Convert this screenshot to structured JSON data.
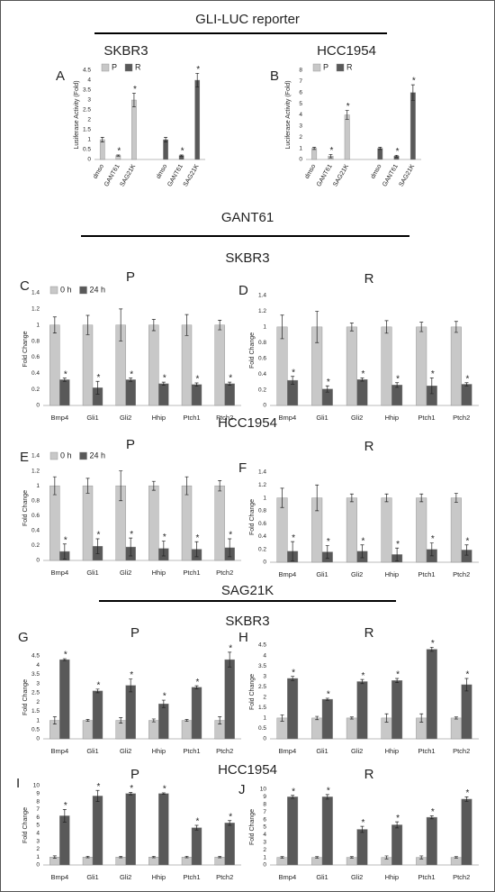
{
  "headings": [
    "GLI-LUC reporter",
    "SKBR3",
    "HCC1954",
    "GANT61",
    "SKBR3",
    "HCC1954",
    "SAG21K",
    "SKBR3",
    "HCC1954"
  ],
  "chart_data": [
    {
      "type": "bar",
      "panel": "A",
      "y_label": "Lusiferase Activity (Fold)",
      "ylim": [
        0,
        4.5
      ],
      "yticks": [
        0,
        0.5,
        1,
        1.5,
        2,
        2.5,
        3,
        3.5,
        4,
        4.5
      ],
      "categories": [
        "dmso",
        "GANT61",
        "SAG21K",
        "dmso",
        "GANT61",
        "SAG21K"
      ],
      "legend": true,
      "series": [
        {
          "name": "P",
          "color": "#c8c8c8",
          "values": [
            1,
            0.2,
            3,
            null,
            null,
            null
          ],
          "errors": [
            0.12,
            0.03,
            0.35,
            null,
            null,
            null
          ],
          "marks": [
            null,
            "*",
            "*",
            null,
            null,
            null
          ]
        },
        {
          "name": "R",
          "color": "#595959",
          "values": [
            null,
            null,
            null,
            1,
            0.2,
            4
          ],
          "errors": [
            null,
            null,
            null,
            0.12,
            0.03,
            0.35
          ],
          "marks": [
            null,
            null,
            null,
            null,
            "*",
            "*"
          ]
        }
      ]
    },
    {
      "type": "bar",
      "panel": "B",
      "y_label": "Luciferase Activity (Fold)",
      "ylim": [
        0,
        8
      ],
      "yticks": [
        0,
        1,
        2,
        3,
        4,
        5,
        6,
        7,
        8
      ],
      "categories": [
        "dmso",
        "GANT61",
        "SAG21K",
        "dmso",
        "GANT61",
        "SAG21K"
      ],
      "legend": true,
      "series": [
        {
          "name": "P",
          "color": "#c8c8c8",
          "values": [
            1,
            0.3,
            4,
            null,
            null,
            null
          ],
          "errors": [
            0.1,
            0.15,
            0.4,
            null,
            null,
            null
          ],
          "marks": [
            null,
            "*",
            "*",
            null,
            null,
            null
          ]
        },
        {
          "name": "R",
          "color": "#595959",
          "values": [
            null,
            null,
            null,
            1,
            0.3,
            6
          ],
          "errors": [
            null,
            null,
            null,
            0.1,
            0.08,
            0.7
          ],
          "marks": [
            null,
            null,
            null,
            null,
            "*",
            "*"
          ]
        }
      ]
    },
    {
      "type": "bar",
      "panel": "C",
      "title": "P",
      "y_label": "Fold Change",
      "ylim": [
        0,
        1.4
      ],
      "yticks": [
        0,
        0.2,
        0.4,
        0.6,
        0.8,
        1,
        1.2,
        1.4
      ],
      "categories": [
        "Bmp4",
        "Gli1",
        "Gli2",
        "Hhip",
        "Ptch1",
        "Ptch2"
      ],
      "legend": true,
      "series": [
        {
          "name": "0 h",
          "color": "#c8c8c8",
          "values": [
            1,
            1,
            1,
            1,
            1,
            1
          ],
          "errors": [
            0.1,
            0.12,
            0.2,
            0.07,
            0.13,
            0.06
          ]
        },
        {
          "name": "24 h",
          "color": "#595959",
          "values": [
            0.32,
            0.22,
            0.32,
            0.27,
            0.26,
            0.27
          ],
          "errors": [
            0.02,
            0.08,
            0.02,
            0.02,
            0.02,
            0.02
          ],
          "marks": [
            "*",
            "*",
            "*",
            "*",
            "*",
            "*"
          ]
        }
      ]
    },
    {
      "type": "bar",
      "panel": "D",
      "title": "R",
      "y_label": "Fold Change",
      "ylim": [
        0,
        1.4
      ],
      "yticks": [
        0,
        0.2,
        0.4,
        0.6,
        0.8,
        1,
        1.2,
        1.4
      ],
      "categories": [
        "Bmp4",
        "Gli1",
        "Gli2",
        "Hhip",
        "Ptch1",
        "Ptch2"
      ],
      "series": [
        {
          "color": "#c8c8c8",
          "values": [
            1,
            1,
            1,
            1,
            1,
            1
          ],
          "errors": [
            0.15,
            0.2,
            0.05,
            0.08,
            0.06,
            0.07
          ]
        },
        {
          "color": "#595959",
          "values": [
            0.32,
            0.21,
            0.33,
            0.26,
            0.25,
            0.27
          ],
          "errors": [
            0.05,
            0.04,
            0.02,
            0.03,
            0.1,
            0.02
          ],
          "marks": [
            "*",
            "*",
            "*",
            "*",
            "*",
            "*"
          ]
        }
      ]
    },
    {
      "type": "bar",
      "panel": "E",
      "title": "P",
      "y_label": "Fold Change",
      "ylim": [
        0,
        1.4
      ],
      "yticks": [
        0,
        0.2,
        0.4,
        0.6,
        0.8,
        1,
        1.2,
        1.4
      ],
      "categories": [
        "Bmp4",
        "Gli1",
        "Gli2",
        "Hhip",
        "Ptch1",
        "Ptch2"
      ],
      "legend": true,
      "series": [
        {
          "name": "0 h",
          "color": "#c8c8c8",
          "values": [
            1,
            1,
            1,
            1,
            1,
            1
          ],
          "errors": [
            0.12,
            0.1,
            0.2,
            0.06,
            0.12,
            0.07
          ]
        },
        {
          "name": "24 h",
          "color": "#595959",
          "values": [
            0.12,
            0.19,
            0.18,
            0.16,
            0.15,
            0.17
          ],
          "errors": [
            0.1,
            0.1,
            0.12,
            0.1,
            0.1,
            0.12
          ],
          "marks": [
            "*",
            "*",
            "*",
            "*",
            "*",
            "*"
          ]
        }
      ]
    },
    {
      "type": "bar",
      "panel": "F",
      "title": "R",
      "y_label": "Fold Change",
      "ylim": [
        0,
        1.4
      ],
      "yticks": [
        0,
        0.2,
        0.4,
        0.6,
        0.8,
        1,
        1.2,
        1.4
      ],
      "categories": [
        "Bmp4",
        "Gli1",
        "Gli2",
        "Hhip",
        "Ptch1",
        "Ptch2"
      ],
      "series": [
        {
          "color": "#c8c8c8",
          "values": [
            1,
            1,
            1,
            1,
            1,
            1
          ],
          "errors": [
            0.15,
            0.2,
            0.06,
            0.06,
            0.06,
            0.07
          ]
        },
        {
          "color": "#595959",
          "values": [
            0.17,
            0.16,
            0.17,
            0.12,
            0.2,
            0.19
          ],
          "errors": [
            0.15,
            0.1,
            0.1,
            0.1,
            0.1,
            0.08
          ],
          "marks": [
            "*",
            "*",
            "*",
            "*",
            "*",
            "*"
          ]
        }
      ]
    },
    {
      "type": "bar",
      "panel": "G",
      "title": "P",
      "y_label": "Fold Change",
      "ylim": [
        0,
        4.5
      ],
      "yticks": [
        0,
        0.5,
        1,
        1.5,
        2,
        2.5,
        3,
        3.5,
        4,
        4.5
      ],
      "categories": [
        "Bmp4",
        "Gli1",
        "Gli2",
        "Hhip",
        "Ptch1",
        "Ptch2"
      ],
      "series": [
        {
          "color": "#c8c8c8",
          "values": [
            1,
            1,
            1,
            1,
            1,
            1
          ],
          "errors": [
            0.2,
            0.05,
            0.15,
            0.08,
            0.05,
            0.2
          ]
        },
        {
          "color": "#595959",
          "values": [
            4.3,
            2.6,
            2.9,
            1.9,
            2.8,
            4.3
          ],
          "errors": [
            0.05,
            0.1,
            0.35,
            0.2,
            0.08,
            0.4
          ],
          "marks": [
            "*",
            "*",
            "*",
            "*",
            "*",
            "*"
          ]
        }
      ]
    },
    {
      "type": "bar",
      "panel": "H",
      "title": "R",
      "y_label": "Fold Change",
      "ylim": [
        0,
        4.5
      ],
      "yticks": [
        0,
        0.5,
        1,
        1.5,
        2,
        2.5,
        3,
        3.5,
        4,
        4.5
      ],
      "categories": [
        "Bmp4",
        "Gli1",
        "Gli2",
        "Hhip",
        "Ptch1",
        "Ptch2"
      ],
      "series": [
        {
          "color": "#c8c8c8",
          "values": [
            1,
            1,
            1,
            1,
            1,
            1
          ],
          "errors": [
            0.15,
            0.08,
            0.05,
            0.2,
            0.2,
            0.05
          ]
        },
        {
          "color": "#595959",
          "values": [
            2.9,
            1.9,
            2.75,
            2.8,
            4.3,
            2.6
          ],
          "errors": [
            0.1,
            0.05,
            0.1,
            0.1,
            0.1,
            0.3
          ],
          "marks": [
            "*",
            "*",
            "*",
            "*",
            "*",
            "*"
          ]
        }
      ]
    },
    {
      "type": "bar",
      "panel": "I",
      "title": "P",
      "y_label": "Fold Change",
      "ylim": [
        0,
        10
      ],
      "yticks": [
        0,
        1,
        2,
        3,
        4,
        5,
        6,
        7,
        8,
        9,
        10
      ],
      "categories": [
        "Bmp4",
        "Gli1",
        "Gli2",
        "Hhip",
        "Ptch1",
        "Ptch2"
      ],
      "series": [
        {
          "color": "#c8c8c8",
          "values": [
            1,
            1,
            1,
            1,
            1,
            1
          ],
          "errors": [
            0.15,
            0.1,
            0.1,
            0.1,
            0.1,
            0.1
          ]
        },
        {
          "color": "#595959",
          "values": [
            6.2,
            8.7,
            9,
            9,
            4.7,
            5.3
          ],
          "errors": [
            0.8,
            0.7,
            0.15,
            0.1,
            0.3,
            0.3
          ],
          "marks": [
            "*",
            "*",
            "*",
            "*",
            "*",
            "*"
          ]
        }
      ]
    },
    {
      "type": "bar",
      "panel": "J",
      "title": "R",
      "y_label": "Fold Change",
      "ylim": [
        0,
        10
      ],
      "yticks": [
        0,
        1,
        2,
        3,
        4,
        5,
        6,
        7,
        8,
        9,
        10
      ],
      "categories": [
        "Bmp4",
        "Gli1",
        "Gli2",
        "Hhip",
        "Ptch1",
        "Ptch2"
      ],
      "series": [
        {
          "color": "#c8c8c8",
          "values": [
            1,
            1,
            1,
            1,
            1,
            1
          ],
          "errors": [
            0.1,
            0.1,
            0.1,
            0.2,
            0.2,
            0.1
          ]
        },
        {
          "color": "#595959",
          "values": [
            9,
            9,
            4.7,
            5.3,
            6.3,
            8.7
          ],
          "errors": [
            0.2,
            0.3,
            0.4,
            0.4,
            0.2,
            0.3
          ],
          "marks": [
            "*",
            "*",
            "*",
            "*",
            "*",
            "*"
          ]
        }
      ]
    }
  ]
}
